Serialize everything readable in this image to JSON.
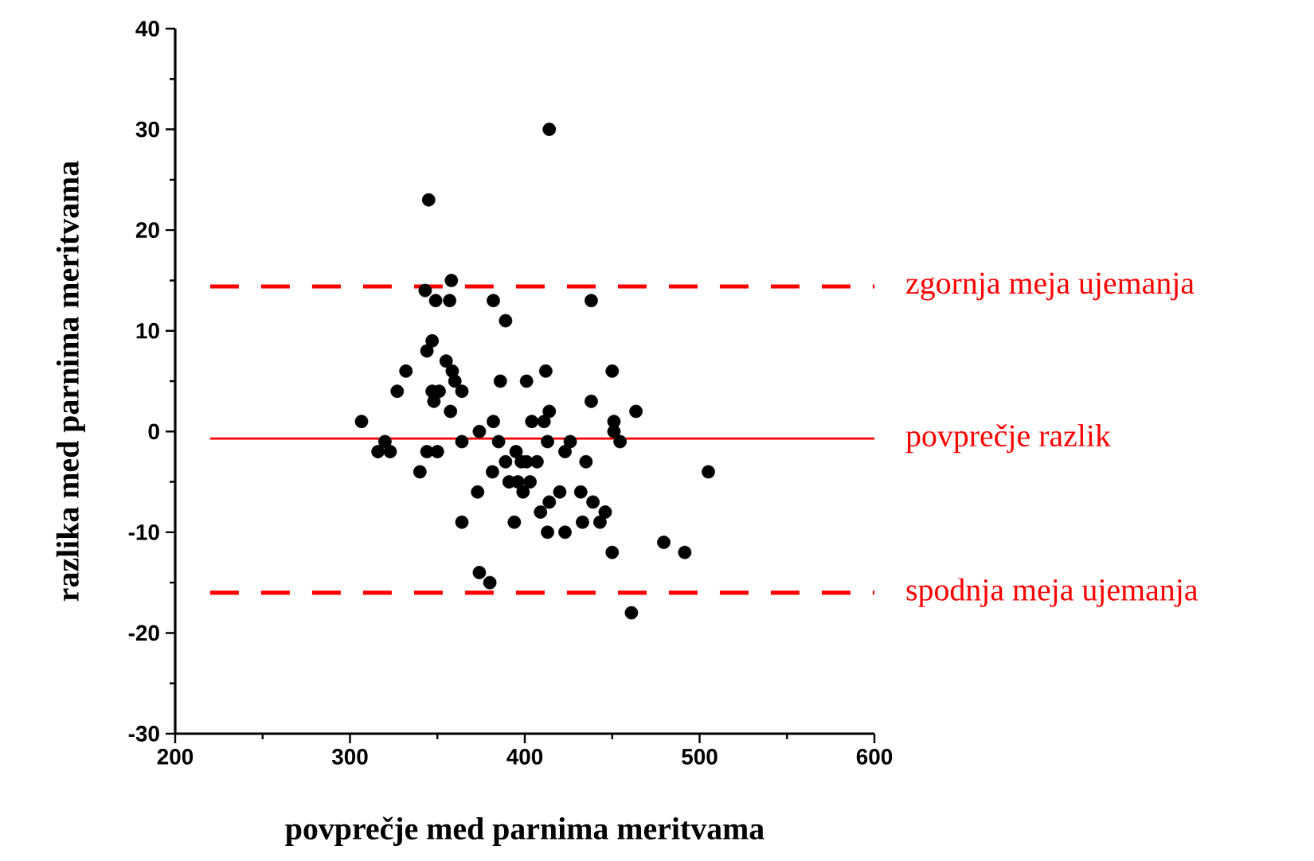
{
  "chart_data": {
    "type": "scatter",
    "xlabel": "povprečje med parnima meritvama",
    "ylabel": "razlika med parnima meritvama",
    "xlim": [
      200,
      600
    ],
    "xticks": [
      200,
      300,
      400,
      500,
      600
    ],
    "ylim": [
      -30,
      40
    ],
    "yticks": [
      -30,
      -20,
      -10,
      0,
      10,
      20,
      30,
      40
    ],
    "grid": false,
    "legend": false,
    "marker": "circle",
    "series": [
      {
        "color": "#000000",
        "x": [
          306.6,
          316,
          320,
          323,
          327,
          332,
          340,
          343,
          344,
          345,
          344,
          347,
          347,
          348,
          349,
          350,
          351,
          355,
          357,
          358,
          357.5,
          358.5,
          360,
          364,
          364,
          364,
          373,
          374,
          374,
          380,
          382,
          382,
          381.5,
          385,
          386,
          389,
          389,
          391,
          394,
          395,
          396,
          398,
          399,
          401,
          401,
          403,
          404,
          407,
          409,
          411,
          412,
          413,
          413,
          414,
          414,
          414,
          420,
          423,
          423,
          426,
          432,
          433,
          435,
          438,
          438,
          439,
          443,
          446,
          450,
          451,
          451,
          450,
          454.5,
          461,
          463.6,
          479.5,
          491.5,
          505
        ],
        "values": [
          1,
          -2,
          -1,
          -2,
          4,
          6,
          -4,
          14,
          8,
          23,
          -2,
          9,
          4,
          3,
          13,
          -2,
          4,
          7,
          13,
          15,
          2,
          6,
          5,
          4,
          -1,
          -9,
          -6,
          0,
          -14,
          -15,
          13,
          1,
          -4,
          -1,
          5,
          11,
          -3,
          -5,
          -9,
          -2,
          -5,
          -3,
          -6,
          5,
          -3,
          -5,
          1,
          -3,
          -8,
          1,
          6,
          -10,
          -1,
          2,
          -7,
          30,
          -6,
          -10,
          -2,
          -1,
          -6,
          -9,
          -3,
          13,
          3,
          -7,
          -9,
          -8,
          6,
          1,
          0,
          -12,
          -1,
          -18,
          2,
          -11,
          -12,
          -4
        ]
      }
    ],
    "ref_lines": [
      {
        "axis": "y",
        "value": 14.4,
        "label": "zgornja meja ujemanja",
        "color": "#ff0000",
        "line_style": "dashed"
      },
      {
        "axis": "y",
        "value": -0.7,
        "label": "povprečje razlik",
        "color": "#ff0000",
        "line_style": "solid"
      },
      {
        "axis": "y",
        "value": -16,
        "label": "spodnja meja ujemanja",
        "color": "#ff0000",
        "line_style": "dashed"
      }
    ]
  }
}
